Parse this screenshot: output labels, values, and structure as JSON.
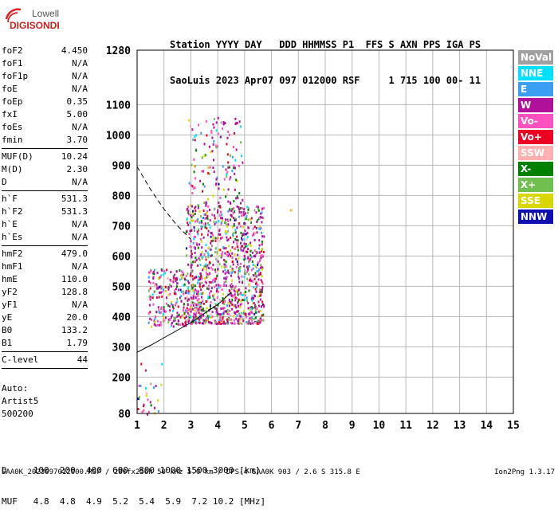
{
  "logo": {
    "line1": "Lowell",
    "line2": "DIGISONDE"
  },
  "header": {
    "line1": "Station YYYY DAY   DDD HHMMSS P1  FFS S AXN PPS IGA PS",
    "line2": "SaoLuis 2023 Apr07 097 012000 RSF     1 715 100 00- 11"
  },
  "params": [
    {
      "name": "foF2",
      "value": "4.450"
    },
    {
      "name": "foF1",
      "value": "N/A"
    },
    {
      "name": "foF1p",
      "value": "N/A"
    },
    {
      "name": "foE",
      "value": "N/A"
    },
    {
      "name": "foEp",
      "value": "0.35"
    },
    {
      "name": "fxI",
      "value": "5.00"
    },
    {
      "name": "foEs",
      "value": "N/A"
    },
    {
      "name": "fmin",
      "value": "3.70"
    },
    {
      "sep": true
    },
    {
      "name": "MUF(D)",
      "value": "10.24"
    },
    {
      "name": "M(D)",
      "value": "2.30"
    },
    {
      "name": "D",
      "value": "N/A"
    },
    {
      "sep": true
    },
    {
      "name": "h`F",
      "value": "531.3"
    },
    {
      "name": "h`F2",
      "value": "531.3"
    },
    {
      "name": "h`E",
      "value": "N/A"
    },
    {
      "name": "h`Es",
      "value": "N/A"
    },
    {
      "sep": true
    },
    {
      "name": "hmF2",
      "value": "479.0"
    },
    {
      "name": "hmF1",
      "value": "N/A"
    },
    {
      "name": "hmE",
      "value": "110.0"
    },
    {
      "name": "yF2",
      "value": "128.8"
    },
    {
      "name": "yF1",
      "value": "N/A"
    },
    {
      "name": "yE",
      "value": "20.0"
    },
    {
      "name": "B0",
      "value": "133.2"
    },
    {
      "name": "B1",
      "value": "1.79"
    },
    {
      "sep": true
    },
    {
      "name": "C-level",
      "value": "44"
    },
    {
      "sep": true
    }
  ],
  "auto": {
    "line1": "Auto:",
    "line2": "Artist5",
    "line3": "500200"
  },
  "legend": [
    {
      "label": "NoVal",
      "color": "#a0a0a0"
    },
    {
      "label": "NNE",
      "color": "#00e0ff"
    },
    {
      "label": "E",
      "color": "#3a9ff0"
    },
    {
      "label": "W",
      "color": "#b0109a"
    },
    {
      "label": "Vo-",
      "color": "#ff50c0"
    },
    {
      "label": "Vo+",
      "color": "#ee0022"
    },
    {
      "label": "SSW",
      "color": "#ffb0b0"
    },
    {
      "label": "X-",
      "color": "#008000"
    },
    {
      "label": "X+",
      "color": "#70c050"
    },
    {
      "label": "SSE",
      "color": "#d8d800"
    },
    {
      "label": "NNW",
      "color": "#1010b0"
    }
  ],
  "chart_data": {
    "type": "scatter",
    "title": "",
    "xlabel": "",
    "ylabel": "",
    "xlim": [
      1,
      15
    ],
    "ylim": [
      80,
      1280
    ],
    "x_ticks": [
      1,
      2,
      3,
      4,
      5,
      6,
      7,
      8,
      9,
      10,
      11,
      12,
      13,
      14,
      15
    ],
    "y_ticks": [
      80,
      200,
      300,
      400,
      500,
      600,
      700,
      800,
      900,
      1000,
      1100,
      1280
    ],
    "grid": true,
    "curves": [
      {
        "name": "dashed",
        "style": "dashed",
        "x": [
          1.0,
          1.5,
          2.0,
          2.5,
          3.0
        ],
        "y": [
          895,
          820,
          755,
          700,
          655
        ]
      },
      {
        "name": "solid",
        "style": "solid",
        "x": [
          1.0,
          1.5,
          2.0,
          2.5,
          3.0,
          3.5,
          4.0,
          4.5
        ],
        "y": [
          282,
          305,
          330,
          355,
          380,
          410,
          440,
          480
        ]
      }
    ],
    "echo_regions": [
      {
        "name": "F-trace main",
        "x": [
          2.8,
          5.7
        ],
        "y": [
          380,
          770
        ]
      },
      {
        "name": "upper spread",
        "x": [
          2.9,
          4.9
        ],
        "y": [
          770,
          1060
        ]
      },
      {
        "name": "low spread",
        "x": [
          1.4,
          2.8
        ],
        "y": [
          370,
          560
        ]
      },
      {
        "name": "low altitude",
        "x": [
          1.0,
          1.9
        ],
        "y": [
          80,
          250
        ]
      },
      {
        "name": "isolated",
        "x": [
          6.7,
          6.7
        ],
        "y": [
          755,
          755
        ]
      }
    ]
  },
  "dmuf": {
    "d_line": "D     100  200  400  600  800 1000 1500 3000 [km]",
    "muf_line": "MUF   4.8  4.8  4.9  5.2  5.4  5.9  7.2 10.2 [MHz]"
  },
  "footer": "SAA0K_2023097012000.RSF / 280fx256h 50 kHz 5.0 km / DPS-4 SAA0K 903 / 2.6 S 315.8 E",
  "version": "Ion2Png 1.3.17"
}
